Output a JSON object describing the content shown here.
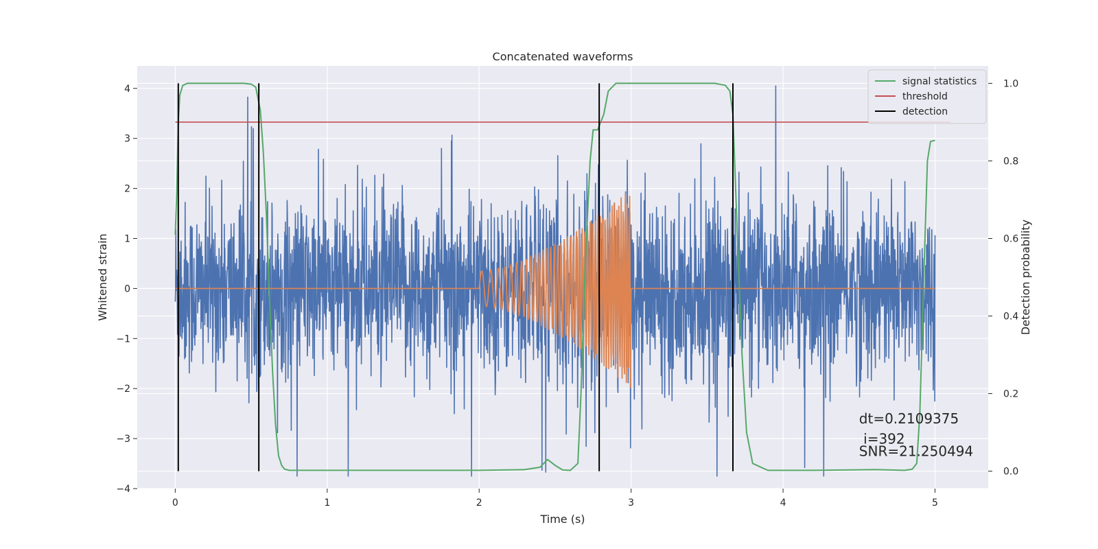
{
  "chart_data": {
    "type": "line",
    "title": "Concatenated waveforms",
    "xlabel": "Time (s)",
    "ylabel": "Whitened strain",
    "ylabel_right": "Detection probability",
    "xlim": [
      -0.25,
      5.35
    ],
    "ylim": [
      -4.0,
      4.45
    ],
    "ylim_right": [
      -0.045,
      1.045
    ],
    "xticks": [
      0,
      1,
      2,
      3,
      4,
      5
    ],
    "xtick_labels": [
      "0",
      "1",
      "2",
      "3",
      "4",
      "5"
    ],
    "yticks": [
      -4,
      -3,
      -2,
      -1,
      0,
      1,
      2,
      3,
      4
    ],
    "ytick_labels": [
      "−4",
      "−3",
      "−2",
      "−1",
      "0",
      "1",
      "2",
      "3",
      "4"
    ],
    "yticks_right": [
      0.0,
      0.2,
      0.4,
      0.6,
      0.8,
      1.0
    ],
    "ytick_labels_right": [
      "0.0",
      "0.2",
      "0.4",
      "0.6",
      "0.8",
      "1.0"
    ],
    "grid": true,
    "legend_position": "top-right",
    "series": [
      {
        "name": "",
        "axis": "left",
        "color": "#4c72b0",
        "kind": "whitened-noise",
        "x_range": [
          0,
          5
        ],
        "description": "noise strain, spikes near ±3.5"
      },
      {
        "name": "",
        "axis": "left",
        "color": "#dd8452",
        "kind": "chirp",
        "x_range": [
          0,
          5
        ],
        "chirp_start": 2.0,
        "chirp_end": 3.0,
        "amplitude_start": 0.35,
        "amplitude_end": 2.0
      },
      {
        "name": "signal statistics",
        "axis": "right",
        "color": "#55a868",
        "x": [
          0.0,
          0.01,
          0.02,
          0.03,
          0.05,
          0.08,
          0.15,
          0.3,
          0.45,
          0.5,
          0.53,
          0.56,
          0.58,
          0.6,
          0.62,
          0.64,
          0.66,
          0.68,
          0.7,
          0.72,
          0.75,
          0.8,
          1.0,
          1.5,
          2.0,
          2.3,
          2.4,
          2.45,
          2.5,
          2.55,
          2.6,
          2.65,
          2.67,
          2.7,
          2.73,
          2.75,
          2.78,
          2.82,
          2.85,
          2.9,
          3.0,
          3.3,
          3.55,
          3.62,
          3.65,
          3.67,
          3.7,
          3.73,
          3.76,
          3.8,
          3.9,
          4.2,
          4.6,
          4.8,
          4.85,
          4.88,
          4.9,
          4.93,
          4.95,
          4.97,
          5.0
        ],
        "y": [
          0.61,
          0.72,
          0.9,
          0.97,
          0.995,
          1.0,
          1.0,
          1.0,
          1.0,
          0.998,
          0.99,
          0.93,
          0.82,
          0.66,
          0.45,
          0.26,
          0.12,
          0.04,
          0.015,
          0.005,
          0.002,
          0.002,
          0.002,
          0.002,
          0.002,
          0.004,
          0.01,
          0.03,
          0.015,
          0.003,
          0.002,
          0.02,
          0.2,
          0.55,
          0.8,
          0.88,
          0.88,
          0.92,
          0.98,
          1.0,
          1.0,
          1.0,
          1.0,
          0.995,
          0.98,
          0.92,
          0.6,
          0.3,
          0.1,
          0.02,
          0.002,
          0.002,
          0.004,
          0.002,
          0.005,
          0.02,
          0.15,
          0.55,
          0.8,
          0.85,
          0.853
        ]
      },
      {
        "name": "threshold",
        "axis": "right",
        "color": "#c44e52",
        "x": [
          0.0,
          5.1
        ],
        "y": [
          0.9,
          0.9
        ]
      },
      {
        "name": "detection",
        "axis": "right",
        "color": "#000000",
        "kind": "vertical-lines",
        "x": [
          0.02,
          0.55,
          2.79,
          3.67
        ],
        "y_range": [
          0.0,
          1.0
        ]
      }
    ],
    "annotations": [
      {
        "text": "dt=0.2109375",
        "x": 4.5,
        "y": -2.7
      },
      {
        "text": " i=392",
        "x": 4.5,
        "y": -3.1
      },
      {
        "text": "SNR=21.250494",
        "x": 4.5,
        "y": -3.35
      }
    ]
  }
}
